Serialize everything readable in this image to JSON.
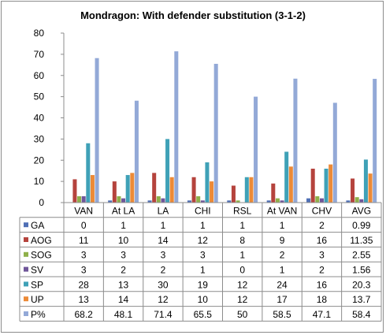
{
  "chart_data": {
    "type": "bar",
    "title": "Mondragon: With defender substitution (3-1-2)",
    "categories": [
      "VAN",
      "At LA",
      "LA",
      "CHI",
      "RSL",
      "At VAN",
      "CHV",
      "AVG"
    ],
    "ylim": [
      0,
      80
    ],
    "yticks": [
      0,
      10,
      20,
      30,
      40,
      50,
      60,
      70,
      80
    ],
    "grid": false,
    "legend": "data-table",
    "series": [
      {
        "name": "GA",
        "color": "#4f6fb5",
        "values": [
          0,
          1,
          1,
          1,
          1,
          1,
          2,
          0.99
        ],
        "labels": [
          "0",
          "1",
          "1",
          "1",
          "1",
          "1",
          "2",
          "0.99"
        ]
      },
      {
        "name": "AOG",
        "color": "#b5433d",
        "values": [
          11,
          10,
          14,
          12,
          8,
          9,
          16,
          11.35
        ],
        "labels": [
          "11",
          "10",
          "14",
          "12",
          "8",
          "9",
          "16",
          "11.35"
        ]
      },
      {
        "name": "SOG",
        "color": "#8fb04a",
        "values": [
          3,
          3,
          3,
          3,
          1,
          2,
          3,
          2.55
        ],
        "labels": [
          "3",
          "3",
          "3",
          "3",
          "1",
          "2",
          "3",
          "2.55"
        ]
      },
      {
        "name": "SV",
        "color": "#6f569a",
        "values": [
          3,
          2,
          2,
          1,
          0,
          1,
          2,
          1.56
        ],
        "labels": [
          "3",
          "2",
          "2",
          "1",
          "0",
          "1",
          "2",
          "1.56"
        ]
      },
      {
        "name": "SP",
        "color": "#3fa1b7",
        "values": [
          28,
          13,
          30,
          19,
          12,
          24,
          16,
          20.3
        ],
        "labels": [
          "28",
          "13",
          "30",
          "19",
          "12",
          "24",
          "16",
          "20.3"
        ]
      },
      {
        "name": "UP",
        "color": "#ec8a37",
        "values": [
          13,
          14,
          12,
          10,
          12,
          17,
          18,
          13.7
        ],
        "labels": [
          "13",
          "14",
          "12",
          "10",
          "12",
          "17",
          "18",
          "13.7"
        ]
      },
      {
        "name": "P%",
        "color": "#93a9d7",
        "values": [
          68.2,
          48.1,
          71.4,
          65.5,
          50,
          58.5,
          47.1,
          58.4
        ],
        "labels": [
          "68.2",
          "48.1",
          "71.4",
          "65.5",
          "50",
          "58.5",
          "47.1",
          "58.4"
        ]
      }
    ]
  }
}
